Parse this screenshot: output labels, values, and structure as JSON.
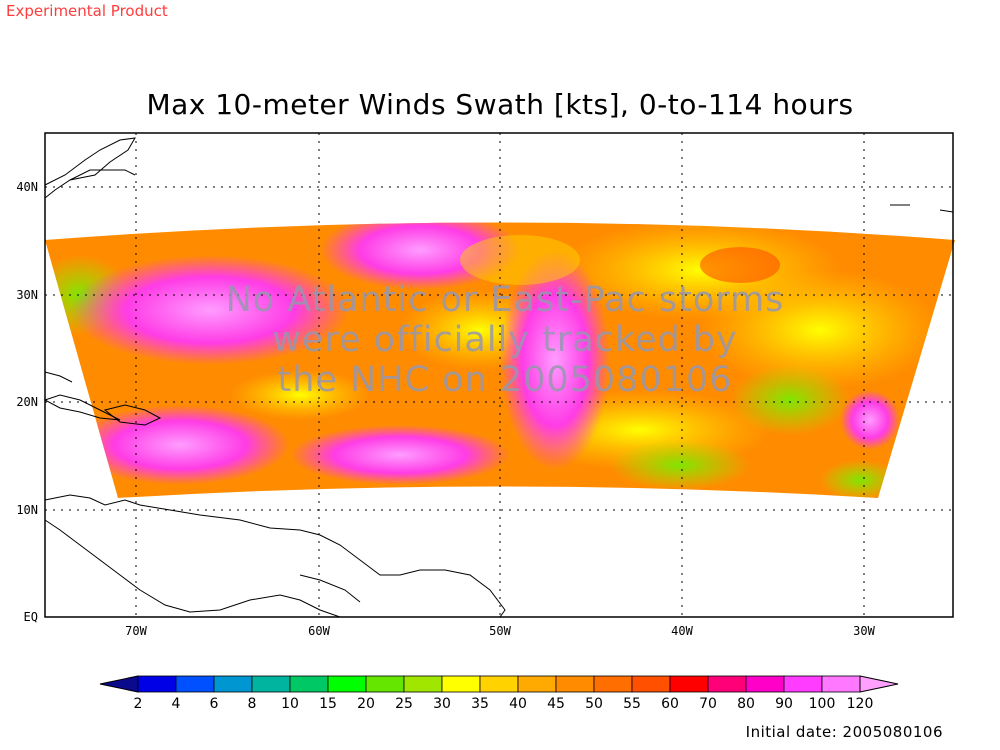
{
  "header": {
    "experimental_label": "Experimental Product",
    "title": "Max 10-meter Winds Swath [kts], 0-to-114 hours"
  },
  "map": {
    "lat_labels": [
      "40N",
      "30N",
      "20N",
      "10N",
      "EQ"
    ],
    "lon_labels": [
      "70W",
      "60W",
      "50W",
      "40W",
      "30W"
    ],
    "notice_lines": [
      "No Atlantic or East-Pac storms",
      "were officially tracked by",
      "the NHC on 2005080106"
    ]
  },
  "colorbar": {
    "labels": [
      "2",
      "4",
      "6",
      "8",
      "10",
      "15",
      "20",
      "25",
      "30",
      "35",
      "40",
      "45",
      "50",
      "55",
      "60",
      "70",
      "80",
      "90",
      "100",
      "120"
    ],
    "colors": [
      "#0a0a8c",
      "#0000e6",
      "#0050ff",
      "#0096d2",
      "#00b4a0",
      "#00c864",
      "#00ff00",
      "#64e600",
      "#a0e600",
      "#ffff00",
      "#ffd200",
      "#ffaa00",
      "#ff8c00",
      "#ff6e00",
      "#ff5000",
      "#ff0000",
      "#ff0078",
      "#ff00c8",
      "#ff3cff",
      "#ff78ff",
      "#ffa0ff"
    ]
  },
  "footer": {
    "initial_date": "Initial date: 2005080106"
  }
}
